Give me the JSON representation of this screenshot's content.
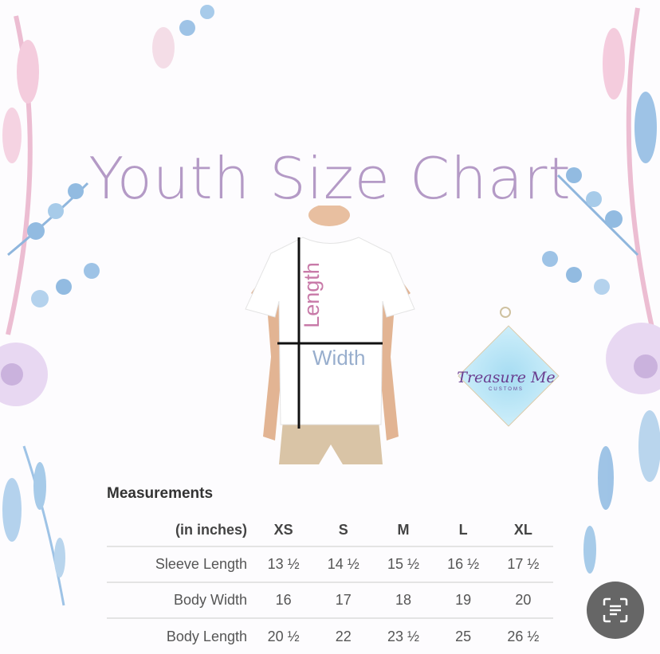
{
  "title": "Youth Size Chart",
  "figure": {
    "length_label": "Length",
    "width_label": "Width"
  },
  "logo": {
    "text": "Treasure Me",
    "subtext": "CUSTOMS"
  },
  "measurements": {
    "heading": "Measurements",
    "unit_header": "(in inches)",
    "sizes": [
      "XS",
      "S",
      "M",
      "L",
      "XL"
    ],
    "rows": [
      {
        "label": "Sleeve Length",
        "values": [
          "13 ½",
          "14 ½",
          "15 ½",
          "16 ½",
          "17 ½"
        ]
      },
      {
        "label": "Body Width",
        "values": [
          "16",
          "17",
          "18",
          "19",
          "20"
        ]
      },
      {
        "label": "Body Length",
        "values": [
          "20 ½",
          "22",
          "23 ½",
          "25",
          "26 ½"
        ]
      }
    ]
  },
  "colors": {
    "title": "#b49ac6",
    "accent_blue": "#6fa6d8",
    "accent_purple": "#c7a6dc"
  },
  "icons": {
    "scan": "scan-text-icon"
  }
}
